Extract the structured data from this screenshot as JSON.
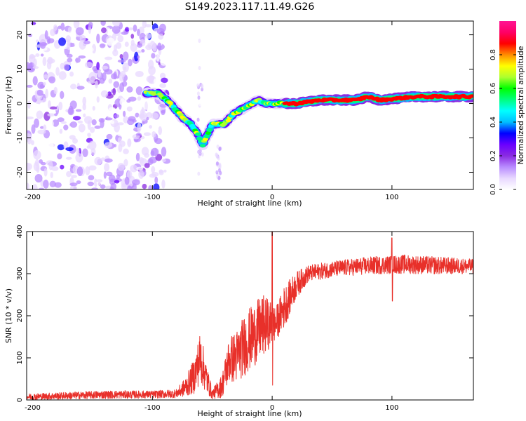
{
  "figure_title": "S149.2023.117.11.49.G26",
  "chart_data": [
    {
      "type": "heatmap",
      "title": "",
      "xlabel": "Height of straight line (km)",
      "ylabel": "Frequency (Hz)",
      "xlim": [
        -205,
        168
      ],
      "ylim": [
        -25,
        24
      ],
      "x_ticks": [
        -200,
        -100,
        0,
        100
      ],
      "y_ticks": [
        -20,
        -10,
        0,
        10,
        20
      ],
      "grid": false,
      "colorbar": {
        "label": "Normalized spectral amplitude",
        "range": [
          0,
          1
        ],
        "ticks": [
          0.0,
          0.2,
          0.4,
          0.6,
          0.8
        ],
        "tick_labels": [
          "0.0",
          "0.2",
          "0.4",
          "0.6",
          "0.8"
        ],
        "colormap": [
          "#ffffff",
          "#e8d8ff",
          "#b98cff",
          "#8a2be2",
          "#6a00ff",
          "#0000ff",
          "#00bfff",
          "#00ffff",
          "#00ff7f",
          "#00ff00",
          "#adff2f",
          "#ffff00",
          "#ff8c00",
          "#ff0000",
          "#ff0066",
          "#ff1493"
        ]
      },
      "noise_region": {
        "x_range": [
          -205,
          -88
        ],
        "freq_range": [
          -25,
          24
        ],
        "amplitude": 0.15
      },
      "ridge": {
        "description": "dominant frequency track",
        "points": [
          {
            "x": -105,
            "f": 3
          },
          {
            "x": -95,
            "f": 3
          },
          {
            "x": -85,
            "f": 0
          },
          {
            "x": -75,
            "f": -4
          },
          {
            "x": -68,
            "f": -6
          },
          {
            "x": -62,
            "f": -9
          },
          {
            "x": -58,
            "f": -12
          },
          {
            "x": -50,
            "f": -6
          },
          {
            "x": -40,
            "f": -6
          },
          {
            "x": -32,
            "f": -3
          },
          {
            "x": -22,
            "f": -1
          },
          {
            "x": -12,
            "f": 1
          },
          {
            "x": -5,
            "f": 0
          },
          {
            "x": 5,
            "f": 0
          },
          {
            "x": 20,
            "f": 0
          },
          {
            "x": 40,
            "f": 1
          },
          {
            "x": 70,
            "f": 1
          },
          {
            "x": 80,
            "f": 2
          },
          {
            "x": 90,
            "f": 1
          },
          {
            "x": 120,
            "f": 2
          },
          {
            "x": 168,
            "f": 2
          }
        ]
      },
      "side_streaks": [
        {
          "x": -60,
          "f_range": [
            -22,
            23
          ],
          "amplitude": 0.12
        },
        {
          "x": -45,
          "f_range": [
            -22,
            -12
          ],
          "amplitude": 0.1
        }
      ]
    },
    {
      "type": "line",
      "title": "",
      "xlabel": "Height of straight line (km)",
      "ylabel": "SNR (10 * v/v)",
      "xlim": [
        -205,
        168
      ],
      "ylim": [
        0,
        400
      ],
      "x_ticks": [
        -200,
        -100,
        0,
        100
      ],
      "y_ticks": [
        0,
        100,
        200,
        300,
        400
      ],
      "grid": false,
      "series": [
        {
          "name": "SNR",
          "color": "#e8302a",
          "envelope": [
            {
              "x": -205,
              "lo": 0,
              "hi": 15
            },
            {
              "x": -140,
              "lo": 3,
              "hi": 22
            },
            {
              "x": -100,
              "lo": 4,
              "hi": 22
            },
            {
              "x": -80,
              "lo": 5,
              "hi": 25
            },
            {
              "x": -72,
              "lo": 8,
              "hi": 55
            },
            {
              "x": -65,
              "lo": 15,
              "hi": 100
            },
            {
              "x": -60,
              "lo": 40,
              "hi": 165
            },
            {
              "x": -55,
              "lo": 15,
              "hi": 90
            },
            {
              "x": -50,
              "lo": 2,
              "hi": 25
            },
            {
              "x": -42,
              "lo": 5,
              "hi": 60
            },
            {
              "x": -36,
              "lo": 40,
              "hi": 150
            },
            {
              "x": -30,
              "lo": 40,
              "hi": 165
            },
            {
              "x": -22,
              "lo": 60,
              "hi": 210
            },
            {
              "x": -15,
              "lo": 80,
              "hi": 230
            },
            {
              "x": -8,
              "lo": 100,
              "hi": 250
            },
            {
              "x": -3,
              "lo": 120,
              "hi": 240
            },
            {
              "x": 3,
              "lo": 140,
              "hi": 220
            },
            {
              "x": 10,
              "lo": 170,
              "hi": 270
            },
            {
              "x": 20,
              "lo": 240,
              "hi": 305
            },
            {
              "x": 30,
              "lo": 280,
              "hi": 320
            },
            {
              "x": 50,
              "lo": 292,
              "hi": 330
            },
            {
              "x": 80,
              "lo": 298,
              "hi": 340
            },
            {
              "x": 110,
              "lo": 300,
              "hi": 345
            },
            {
              "x": 140,
              "lo": 298,
              "hi": 340
            },
            {
              "x": 168,
              "lo": 300,
              "hi": 335
            }
          ],
          "spikes": [
            {
              "x": 0,
              "hi": 400,
              "lo": 35
            },
            {
              "x": 100,
              "hi": 385,
              "lo": 235
            }
          ]
        }
      ]
    }
  ]
}
